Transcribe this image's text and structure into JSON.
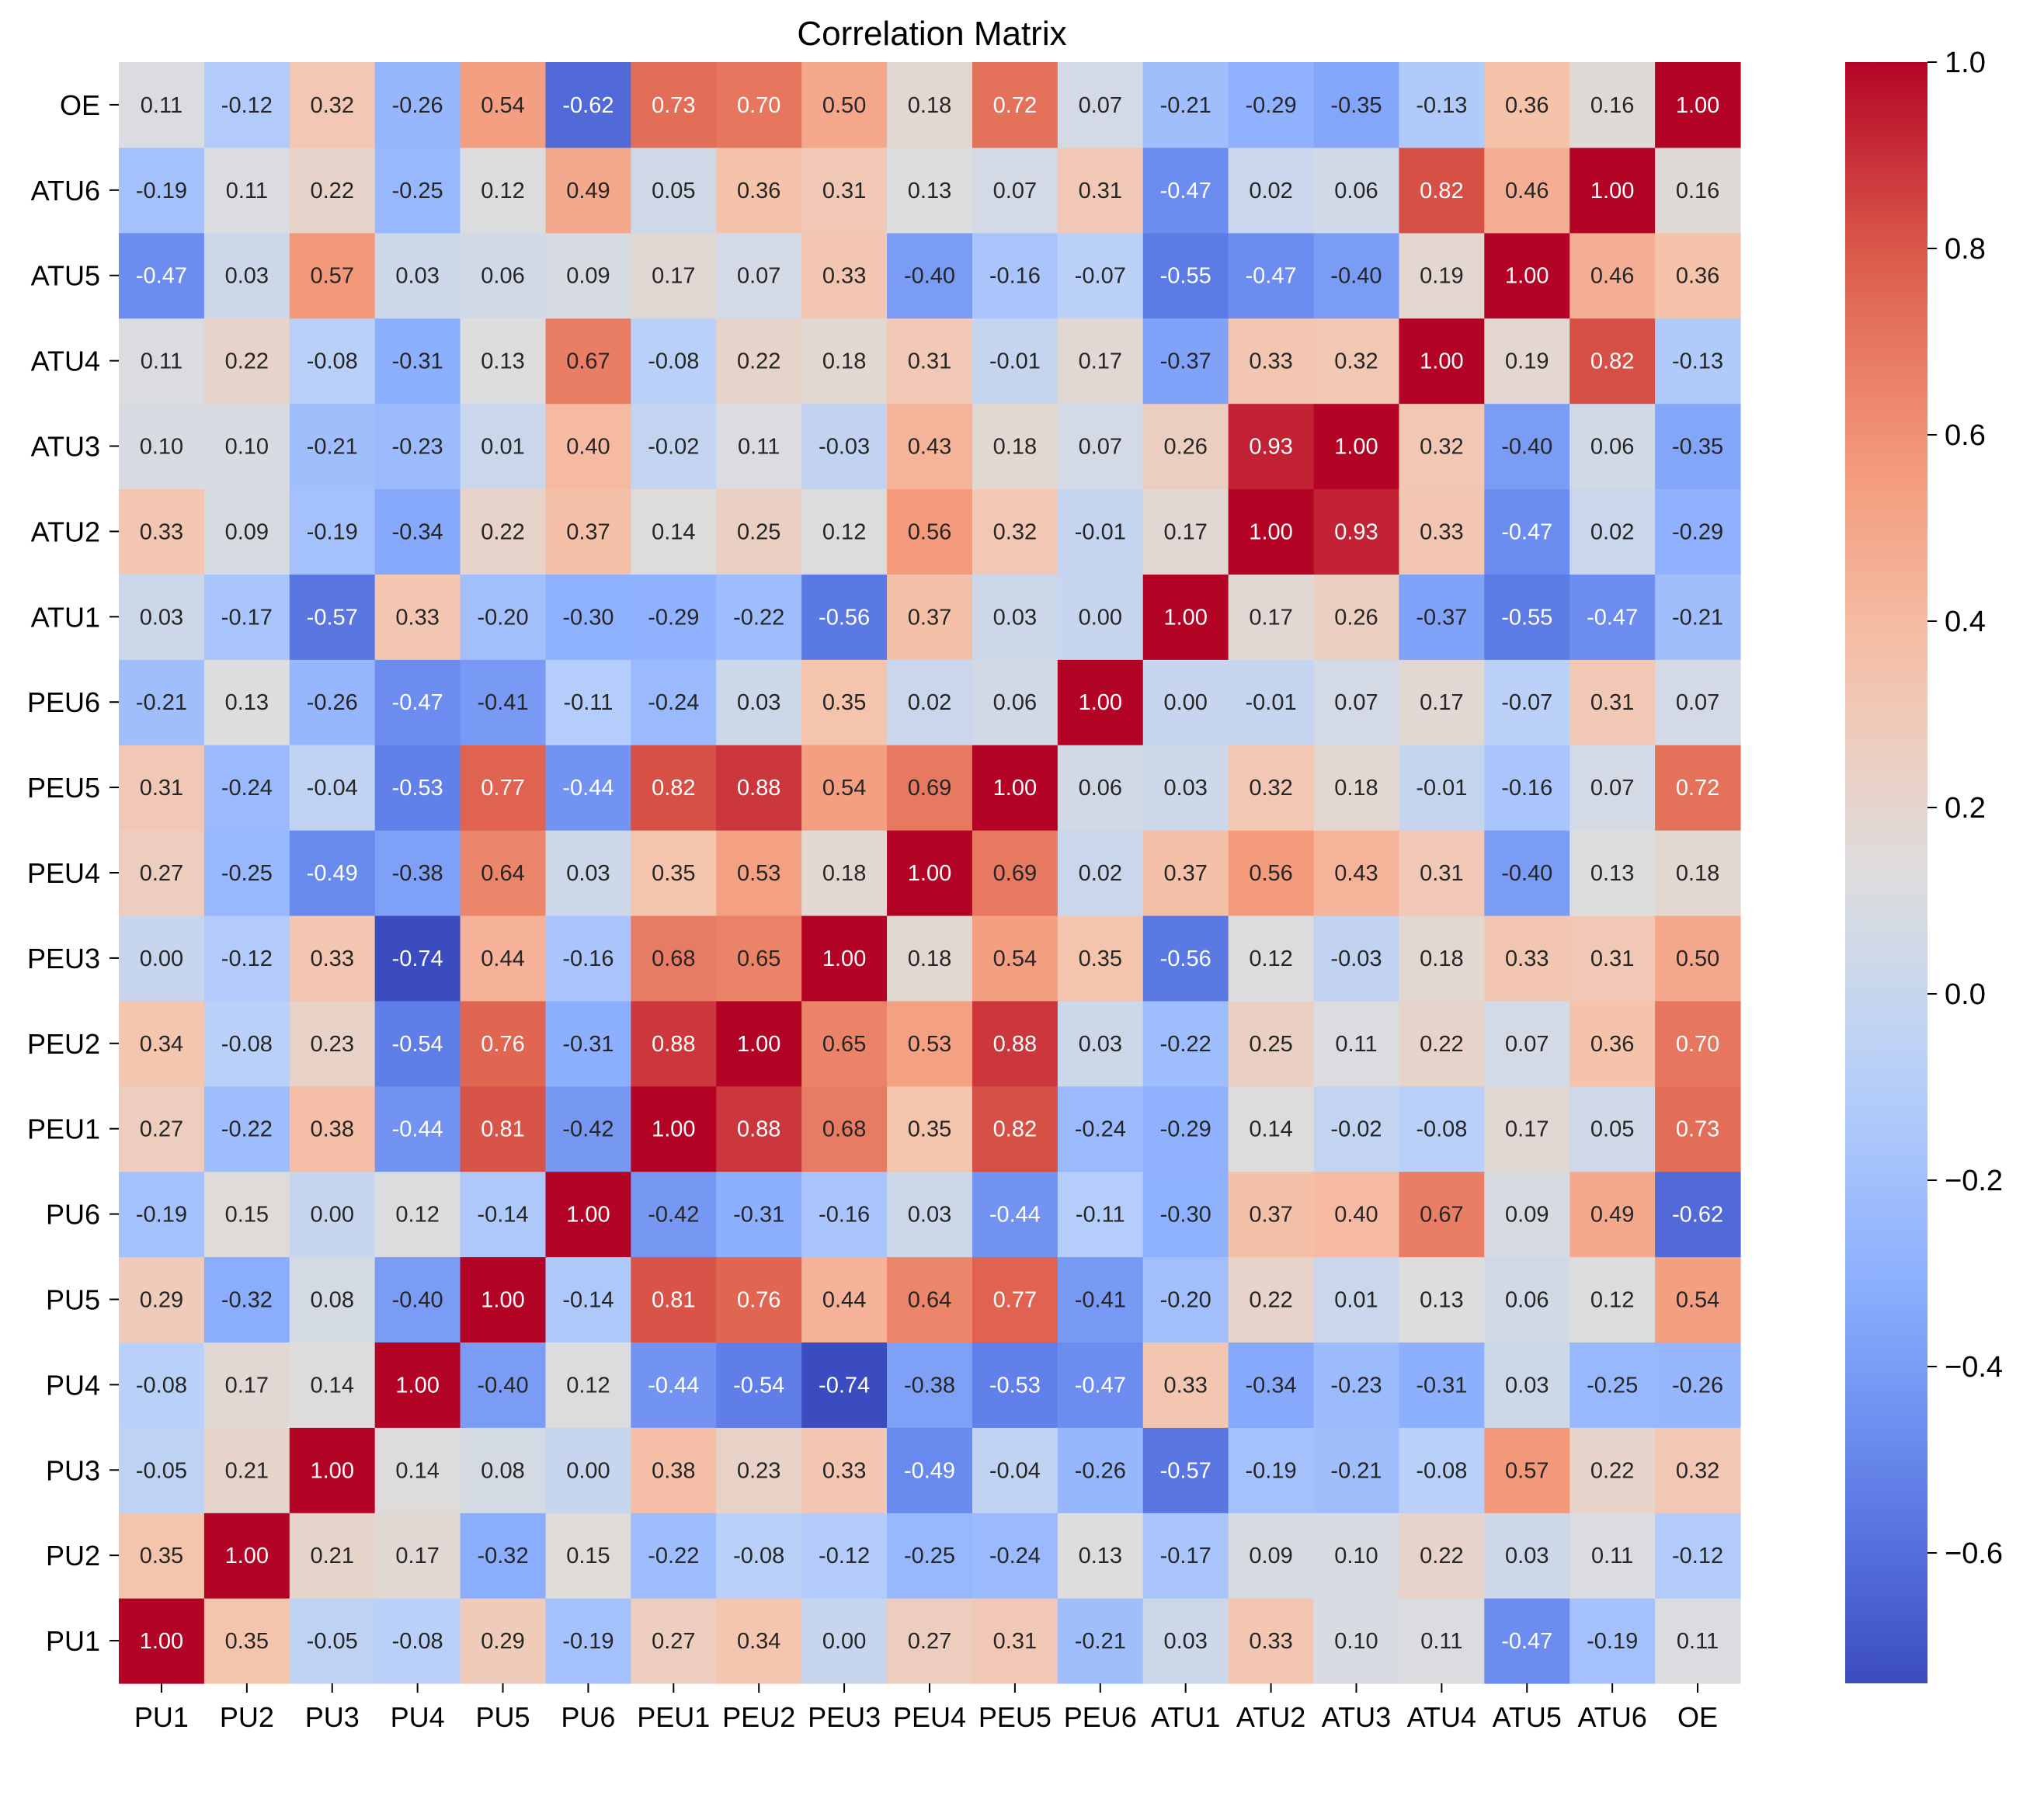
{
  "chart_data": {
    "type": "heatmap",
    "title": "Correlation Matrix",
    "xlabel": "",
    "ylabel": "",
    "variables": [
      "PU1",
      "PU2",
      "PU3",
      "PU4",
      "PU5",
      "PU6",
      "PEU1",
      "PEU2",
      "PEU3",
      "PEU4",
      "PEU5",
      "PEU6",
      "ATU1",
      "ATU2",
      "ATU3",
      "ATU4",
      "ATU5",
      "ATU6",
      "OE"
    ],
    "matrix": [
      [
        1.0,
        0.35,
        -0.05,
        -0.08,
        0.29,
        -0.19,
        0.27,
        0.34,
        -0.0,
        0.27,
        0.31,
        -0.21,
        0.03,
        0.33,
        0.1,
        0.11,
        -0.47,
        -0.19,
        0.11
      ],
      [
        0.35,
        1.0,
        0.21,
        0.17,
        -0.32,
        0.15,
        -0.22,
        -0.08,
        -0.12,
        -0.25,
        -0.24,
        0.13,
        -0.17,
        0.09,
        0.1,
        0.22,
        0.03,
        0.11,
        -0.12
      ],
      [
        -0.05,
        0.21,
        1.0,
        0.14,
        0.08,
        0.0,
        0.38,
        0.23,
        0.33,
        -0.49,
        -0.04,
        -0.26,
        -0.57,
        -0.19,
        -0.21,
        -0.08,
        0.57,
        0.22,
        0.32
      ],
      [
        -0.08,
        0.17,
        0.14,
        1.0,
        -0.4,
        0.12,
        -0.44,
        -0.54,
        -0.74,
        -0.38,
        -0.53,
        -0.47,
        0.33,
        -0.34,
        -0.23,
        -0.31,
        0.03,
        -0.25,
        -0.26
      ],
      [
        0.29,
        -0.32,
        0.08,
        -0.4,
        1.0,
        -0.14,
        0.81,
        0.76,
        0.44,
        0.64,
        0.77,
        -0.41,
        -0.2,
        0.22,
        0.01,
        0.13,
        0.06,
        0.12,
        0.54
      ],
      [
        -0.19,
        0.15,
        0.0,
        0.12,
        -0.14,
        1.0,
        -0.42,
        -0.31,
        -0.16,
        0.03,
        -0.44,
        -0.11,
        -0.3,
        0.37,
        0.4,
        0.67,
        0.09,
        0.49,
        -0.62
      ],
      [
        0.27,
        -0.22,
        0.38,
        -0.44,
        0.81,
        -0.42,
        1.0,
        0.88,
        0.68,
        0.35,
        0.82,
        -0.24,
        -0.29,
        0.14,
        -0.02,
        -0.08,
        0.17,
        0.05,
        0.73
      ],
      [
        0.34,
        -0.08,
        0.23,
        -0.54,
        0.76,
        -0.31,
        0.88,
        1.0,
        0.65,
        0.53,
        0.88,
        0.03,
        -0.22,
        0.25,
        0.11,
        0.22,
        0.07,
        0.36,
        0.7
      ],
      [
        -0.0,
        -0.12,
        0.33,
        -0.74,
        0.44,
        -0.16,
        0.68,
        0.65,
        1.0,
        0.18,
        0.54,
        0.35,
        -0.56,
        0.12,
        -0.03,
        0.18,
        0.33,
        0.31,
        0.5
      ],
      [
        0.27,
        -0.25,
        -0.49,
        -0.38,
        0.64,
        0.03,
        0.35,
        0.53,
        0.18,
        1.0,
        0.69,
        0.02,
        0.37,
        0.56,
        0.43,
        0.31,
        -0.4,
        0.13,
        0.18
      ],
      [
        0.31,
        -0.24,
        -0.04,
        -0.53,
        0.77,
        -0.44,
        0.82,
        0.88,
        0.54,
        0.69,
        1.0,
        0.06,
        0.03,
        0.32,
        0.18,
        -0.01,
        -0.16,
        0.07,
        0.72
      ],
      [
        -0.21,
        0.13,
        -0.26,
        -0.47,
        -0.41,
        -0.11,
        -0.24,
        0.03,
        0.35,
        0.02,
        0.06,
        1.0,
        -0.0,
        -0.01,
        0.07,
        0.17,
        -0.07,
        0.31,
        0.07
      ],
      [
        0.03,
        -0.17,
        -0.57,
        0.33,
        -0.2,
        -0.3,
        -0.29,
        -0.22,
        -0.56,
        0.37,
        0.03,
        -0.0,
        1.0,
        0.17,
        0.26,
        -0.37,
        -0.55,
        -0.47,
        -0.21
      ],
      [
        0.33,
        0.09,
        -0.19,
        -0.34,
        0.22,
        0.37,
        0.14,
        0.25,
        0.12,
        0.56,
        0.32,
        -0.01,
        0.17,
        1.0,
        0.93,
        0.33,
        -0.47,
        0.02,
        -0.29
      ],
      [
        0.1,
        0.1,
        -0.21,
        -0.23,
        0.01,
        0.4,
        -0.02,
        0.11,
        -0.03,
        0.43,
        0.18,
        0.07,
        0.26,
        0.93,
        1.0,
        0.32,
        -0.4,
        0.06,
        -0.35
      ],
      [
        0.11,
        0.22,
        -0.08,
        -0.31,
        0.13,
        0.67,
        -0.08,
        0.22,
        0.18,
        0.31,
        -0.01,
        0.17,
        -0.37,
        0.33,
        0.32,
        1.0,
        0.19,
        0.82,
        -0.13
      ],
      [
        -0.47,
        0.03,
        0.57,
        0.03,
        0.06,
        0.09,
        0.17,
        0.07,
        0.33,
        -0.4,
        -0.16,
        -0.07,
        -0.55,
        -0.47,
        -0.4,
        0.19,
        1.0,
        0.46,
        0.36
      ],
      [
        -0.19,
        0.11,
        0.22,
        -0.25,
        0.12,
        0.49,
        0.05,
        0.36,
        0.31,
        0.13,
        0.07,
        0.31,
        -0.47,
        0.02,
        0.06,
        0.82,
        0.46,
        1.0,
        0.16
      ],
      [
        0.11,
        -0.12,
        0.32,
        -0.26,
        0.54,
        -0.62,
        0.73,
        0.7,
        0.5,
        0.18,
        0.72,
        0.07,
        -0.21,
        -0.29,
        -0.35,
        -0.13,
        0.36,
        0.16,
        1.0
      ]
    ],
    "row_order": "bottom-to-top",
    "colormap": "coolwarm",
    "vmin": -0.74,
    "vmax": 1.0,
    "colorbar_ticks": [
      1.0,
      0.8,
      0.6,
      0.4,
      0.2,
      0.0,
      -0.2,
      -0.4,
      -0.6
    ],
    "colorbar_tick_labels": [
      "1.0",
      "0.8",
      "0.6",
      "0.4",
      "0.2",
      "0.0",
      "−0.2",
      "−0.4",
      "−0.6"
    ]
  }
}
